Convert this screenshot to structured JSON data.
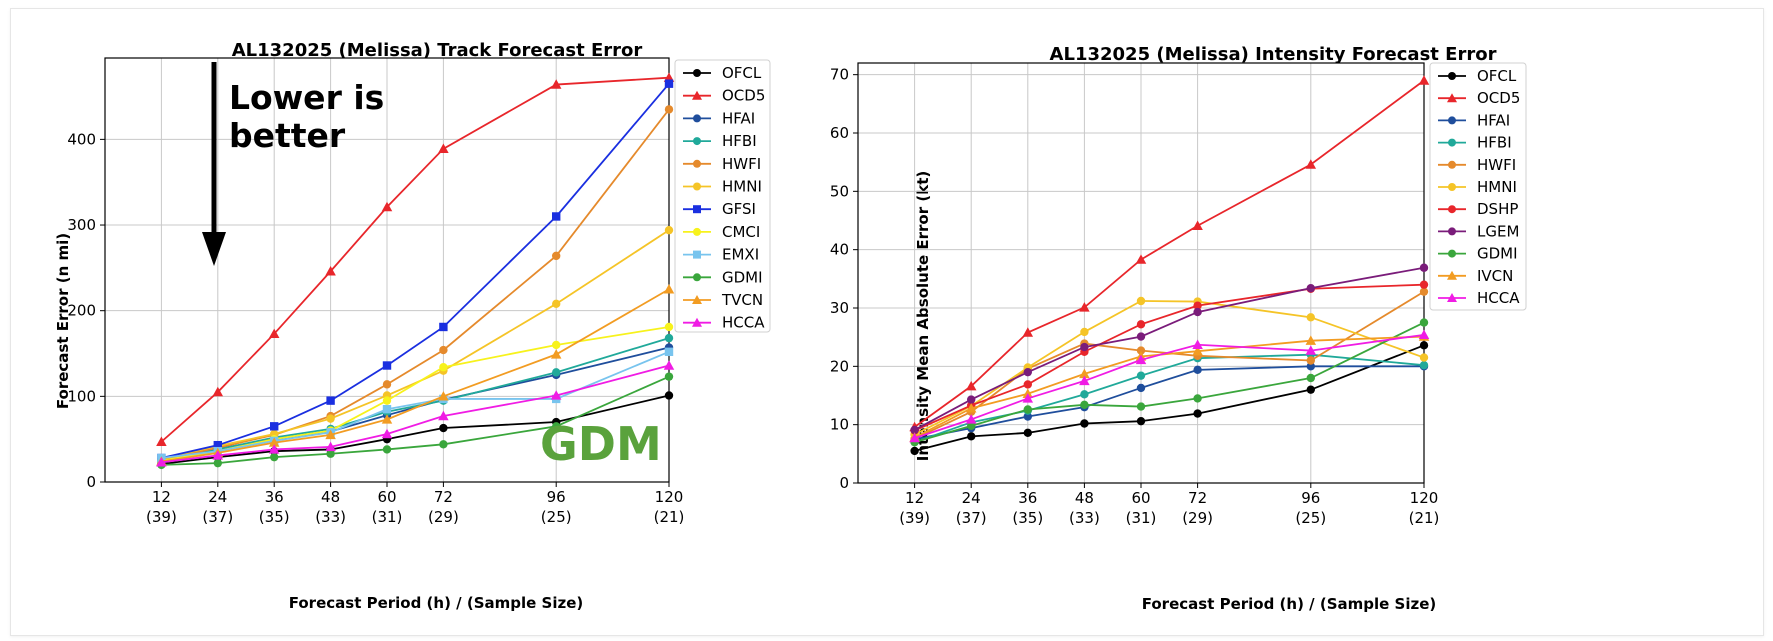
{
  "chart_data": [
    {
      "type": "line",
      "title": "AL132025 (Melissa) Track Forecast Error",
      "xlabel": "Forecast Period (h) / (Sample Size)",
      "ylabel": "Forecast Error (n mi)",
      "x": [
        12,
        24,
        36,
        48,
        60,
        72,
        96,
        120
      ],
      "xtick_labels": [
        "12",
        "24",
        "36",
        "48",
        "60",
        "72",
        "96",
        "120"
      ],
      "xtick_sublabels": [
        "(39)",
        "(37)",
        "(35)",
        "(33)",
        "(31)",
        "(29)",
        "(25)",
        "(21)"
      ],
      "xlim": [
        0,
        120
      ],
      "ylim": [
        0,
        495
      ],
      "yticks": [
        0,
        100,
        200,
        300,
        400
      ],
      "grid": true,
      "legend_position": "outside-right",
      "series": [
        {
          "name": "OFCL",
          "color": "#000000",
          "marker": "circle",
          "values": [
            21,
            29,
            36,
            38,
            50,
            63,
            70,
            101
          ]
        },
        {
          "name": "OCD5",
          "color": "#e8262b",
          "marker": "triangle",
          "values": [
            47,
            105,
            173,
            246,
            321,
            389,
            464,
            472
          ]
        },
        {
          "name": "HFAI",
          "color": "#1f4e9c",
          "marker": "circle",
          "values": [
            25,
            39,
            50,
            59,
            78,
            96,
            125,
            157
          ]
        },
        {
          "name": "HFBI",
          "color": "#20a99a",
          "marker": "circle",
          "values": [
            27,
            38,
            52,
            62,
            82,
            95,
            128,
            168
          ]
        },
        {
          "name": "HWFI",
          "color": "#e58a2c",
          "marker": "circle",
          "values": [
            26,
            40,
            55,
            77,
            114,
            154,
            264,
            435
          ]
        },
        {
          "name": "HMNI",
          "color": "#f5c427",
          "marker": "circle",
          "values": [
            27,
            42,
            56,
            74,
            101,
            130,
            208,
            294
          ]
        },
        {
          "name": "GFSI",
          "color": "#1a2fe0",
          "marker": "square",
          "values": [
            28,
            43,
            65,
            95,
            136,
            181,
            310,
            465
          ]
        },
        {
          "name": "CMCI",
          "color": "#f7f21c",
          "marker": "circle",
          "values": [
            25,
            36,
            50,
            60,
            95,
            134,
            160,
            181
          ]
        },
        {
          "name": "EMXI",
          "color": "#78c4ee",
          "marker": "square",
          "values": [
            28,
            36,
            48,
            58,
            85,
            97,
            97,
            152
          ]
        },
        {
          "name": "GDMI",
          "color": "#3aa63c",
          "marker": "circle",
          "values": [
            20,
            22,
            29,
            33,
            38,
            44,
            65,
            123
          ]
        },
        {
          "name": "TVCN",
          "color": "#f29c22",
          "marker": "triangle",
          "values": [
            24,
            34,
            46,
            55,
            73,
            100,
            149,
            225
          ]
        },
        {
          "name": "HCCA",
          "color": "#f01ce4",
          "marker": "triangle",
          "values": [
            23,
            31,
            38,
            41,
            56,
            77,
            101,
            136
          ]
        }
      ],
      "annotations": [
        "Lower is\nbetter",
        "GDM"
      ]
    },
    {
      "type": "line",
      "title": "AL132025 (Melissa) Intensity Forecast Error",
      "xlabel": "Forecast Period (h) / (Sample Size)",
      "ylabel": "Intensity Mean Absolute Error (kt)",
      "x": [
        12,
        24,
        36,
        48,
        60,
        72,
        96,
        120
      ],
      "xtick_labels": [
        "12",
        "24",
        "36",
        "48",
        "60",
        "72",
        "96",
        "120"
      ],
      "xtick_sublabels": [
        "(39)",
        "(37)",
        "(35)",
        "(33)",
        "(31)",
        "(29)",
        "(25)",
        "(21)"
      ],
      "xlim": [
        0,
        120
      ],
      "ylim": [
        0,
        72
      ],
      "yticks": [
        0,
        10,
        20,
        30,
        40,
        50,
        60,
        70
      ],
      "grid": true,
      "legend_position": "outside-right",
      "series": [
        {
          "name": "OFCL",
          "color": "#000000",
          "marker": "circle",
          "values": [
            5.5,
            8.0,
            8.6,
            10.2,
            10.6,
            11.9,
            16.0,
            23.6
          ]
        },
        {
          "name": "OCD5",
          "color": "#e8262b",
          "marker": "triangle",
          "values": [
            9.6,
            16.6,
            25.8,
            30.1,
            38.3,
            44.1,
            54.6,
            69.0
          ]
        },
        {
          "name": "HFAI",
          "color": "#1f4e9c",
          "marker": "circle",
          "values": [
            7.5,
            9.4,
            11.4,
            13.0,
            16.3,
            19.4,
            20.0,
            20.0
          ]
        },
        {
          "name": "HFBI",
          "color": "#20a99a",
          "marker": "circle",
          "values": [
            7.0,
            10.4,
            12.4,
            15.2,
            18.4,
            21.4,
            22.0,
            20.2
          ]
        },
        {
          "name": "HWFI",
          "color": "#e58a2c",
          "marker": "circle",
          "values": [
            7.6,
            12.2,
            19.6,
            23.9,
            22.7,
            21.8,
            21.0,
            32.8
          ]
        },
        {
          "name": "HMNI",
          "color": "#f5c427",
          "marker": "circle",
          "values": [
            8.3,
            13.2,
            19.8,
            25.9,
            31.2,
            31.1,
            28.4,
            21.5
          ]
        },
        {
          "name": "DSHP",
          "color": "#e8262b",
          "marker": "circle",
          "values": [
            9.0,
            13.3,
            16.9,
            22.5,
            27.2,
            30.4,
            33.3,
            34.0
          ]
        },
        {
          "name": "LGEM",
          "color": "#7a1c7a",
          "marker": "circle",
          "values": [
            9.1,
            14.3,
            19.0,
            23.3,
            25.1,
            29.3,
            33.4,
            36.9
          ]
        },
        {
          "name": "GDMI",
          "color": "#3aa63c",
          "marker": "circle",
          "values": [
            7.0,
            9.8,
            12.6,
            13.4,
            13.1,
            14.5,
            18.0,
            27.5
          ]
        },
        {
          "name": "IVCN",
          "color": "#f29c22",
          "marker": "triangle",
          "values": [
            7.8,
            12.8,
            15.3,
            18.7,
            21.7,
            22.6,
            24.4,
            25.1
          ]
        },
        {
          "name": "HCCA",
          "color": "#f01ce4",
          "marker": "triangle",
          "values": [
            7.7,
            10.9,
            14.5,
            17.5,
            21.1,
            23.7,
            22.7,
            25.4
          ]
        }
      ]
    }
  ]
}
